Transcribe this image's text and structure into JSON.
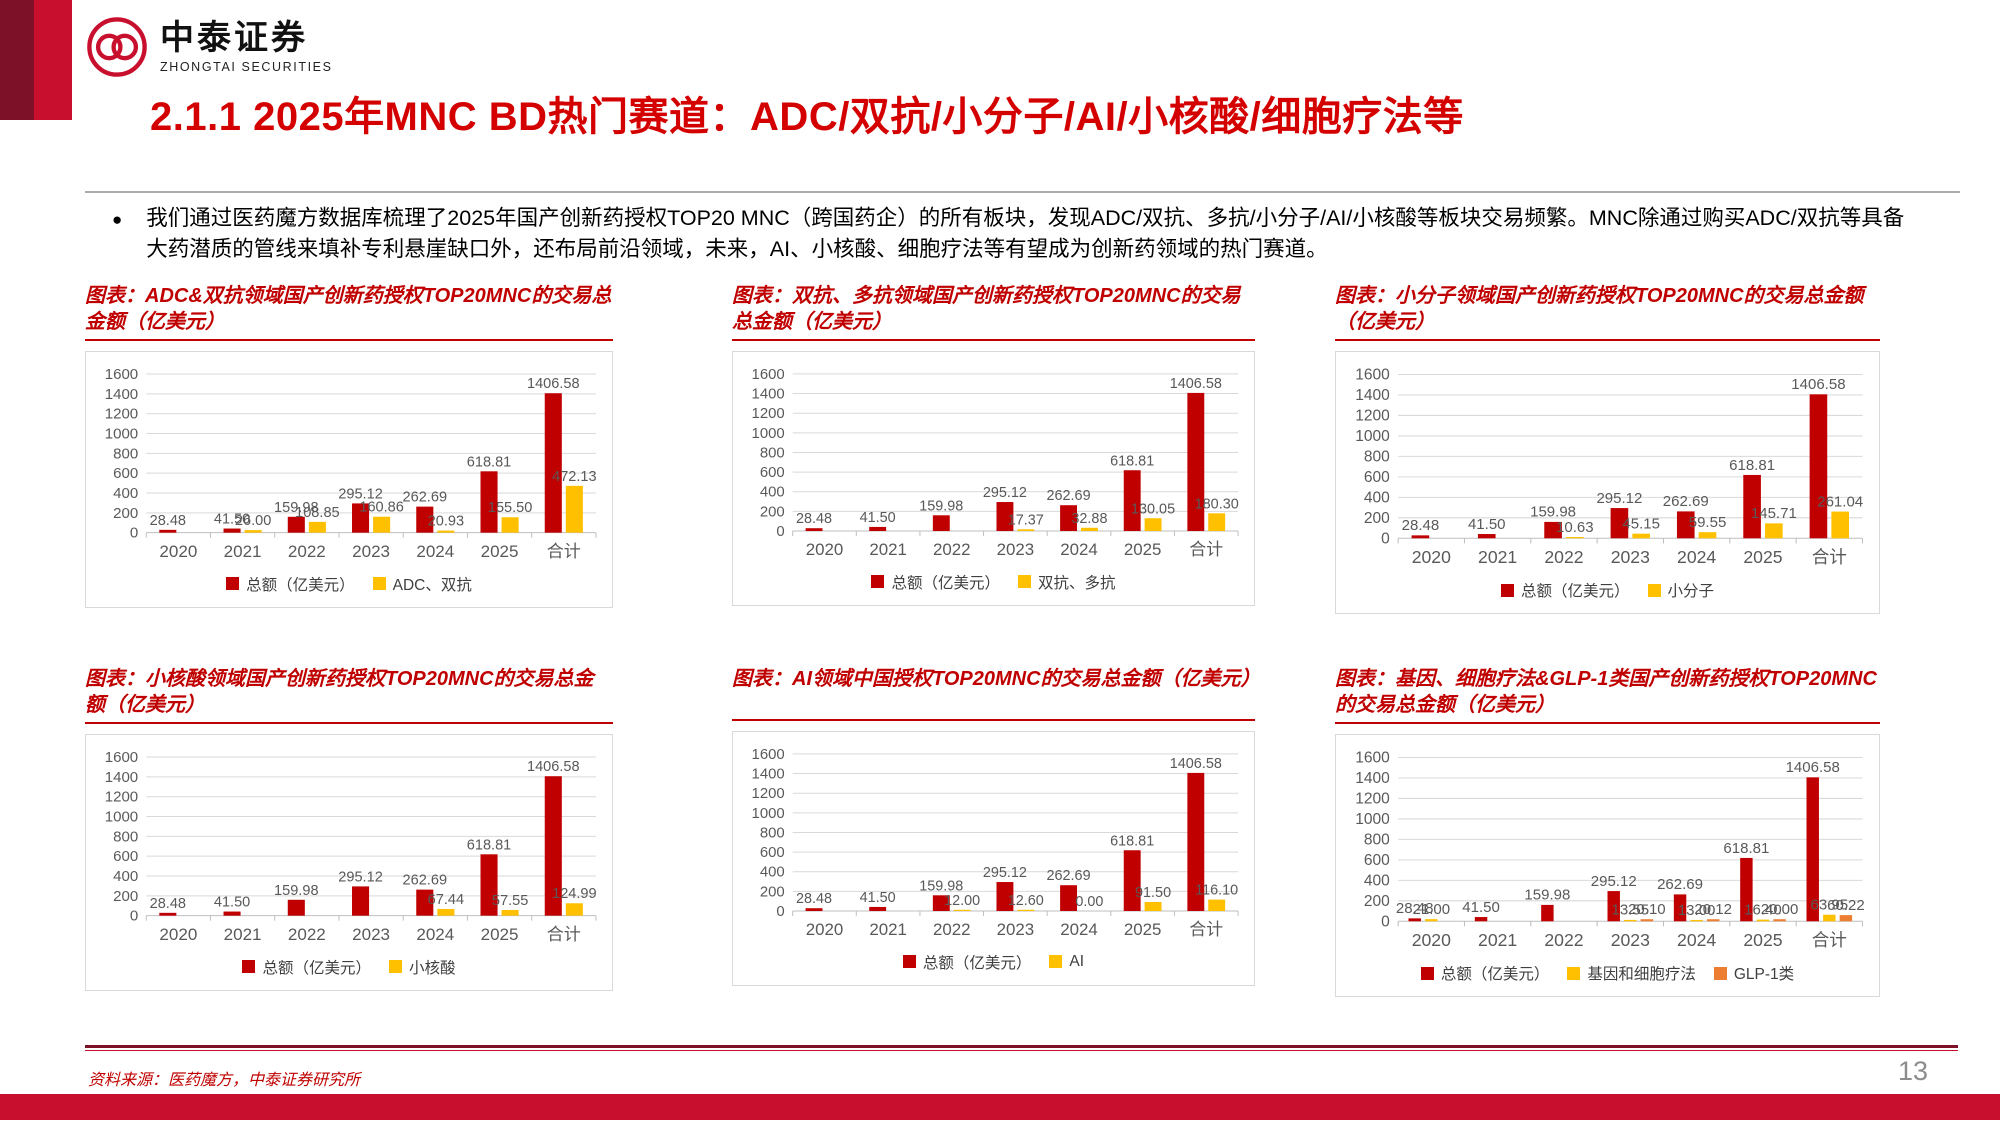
{
  "brand": {
    "name_cn": "中泰证券",
    "name_en": "ZHONGTAI SECURITIES",
    "color": "#C8102E"
  },
  "page": {
    "title": "2.1.1 2025年MNC BD热门赛道：ADC/双抗/小分子/AI/小核酸/细胞疗法等",
    "source": "资料来源：医药魔方，中泰证券研究所",
    "page_number": "13"
  },
  "bullet": {
    "text": "我们通过医药魔方数据库梳理了2025年国产创新药授权TOP20 MNC（跨国药企）的所有板块，发现ADC/双抗、多抗/小分子/AI/小核酸等板块交易频繁。MNC除通过购买ADC/双抗等具备大药潜质的管线来填补专利悬崖缺口外，还布局前沿领域，未来，AI、小核酸、细胞疗法等有望成为创新药领域的热门赛道。"
  },
  "colors": {
    "total_bar": "#C00000",
    "secondary_bar": "#FFC000",
    "tertiary_bar": "#ED7D31",
    "grid": "#D9D9D9",
    "axis_text": "#595959",
    "title_red": "#C00000"
  },
  "chart_data": [
    {
      "type": "bar",
      "title": "图表：ADC&双抗领域国产创新药授权TOP20MNC的交易总金额（亿美元）",
      "categories": [
        "2020",
        "2021",
        "2022",
        "2023",
        "2024",
        "2025",
        "合计"
      ],
      "ylim": [
        0,
        1600
      ],
      "ytick_step": 200,
      "grid": true,
      "legend_position": "bottom",
      "series": [
        {
          "name": "总额（亿美元）",
          "color": "#C00000",
          "values": [
            28.48,
            41.5,
            159.98,
            295.12,
            262.69,
            618.81,
            1406.58
          ]
        },
        {
          "name": "ADC、双抗",
          "color": "#FFC000",
          "values": [
            null,
            26.0,
            108.85,
            160.86,
            20.93,
            155.5,
            472.13
          ]
        }
      ]
    },
    {
      "type": "bar",
      "title": "图表：双抗、多抗领域国产创新药授权TOP20MNC的交易总金额（亿美元）",
      "categories": [
        "2020",
        "2021",
        "2022",
        "2023",
        "2024",
        "2025",
        "合计"
      ],
      "ylim": [
        0,
        1600
      ],
      "ytick_step": 200,
      "grid": true,
      "legend_position": "bottom",
      "series": [
        {
          "name": "总额（亿美元）",
          "color": "#C00000",
          "values": [
            28.48,
            41.5,
            159.98,
            295.12,
            262.69,
            618.81,
            1406.58
          ]
        },
        {
          "name": "双抗、多抗",
          "color": "#FFC000",
          "values": [
            null,
            null,
            null,
            17.37,
            32.88,
            130.05,
            180.3
          ]
        }
      ]
    },
    {
      "type": "bar",
      "title": "图表：小分子领域国产创新药授权TOP20MNC的交易总金额（亿美元）",
      "categories": [
        "2020",
        "2021",
        "2022",
        "2023",
        "2024",
        "2025",
        "合计"
      ],
      "ylim": [
        0,
        1600
      ],
      "ytick_step": 200,
      "grid": true,
      "legend_position": "bottom",
      "series": [
        {
          "name": "总额（亿美元）",
          "color": "#C00000",
          "values": [
            28.48,
            41.5,
            159.98,
            295.12,
            262.69,
            618.81,
            1406.58
          ]
        },
        {
          "name": "小分子",
          "color": "#FFC000",
          "values": [
            null,
            null,
            10.63,
            45.15,
            59.55,
            145.71,
            261.04
          ]
        }
      ]
    },
    {
      "type": "bar",
      "title": "图表：小核酸领域国产创新药授权TOP20MNC的交易总金额（亿美元）",
      "categories": [
        "2020",
        "2021",
        "2022",
        "2023",
        "2024",
        "2025",
        "合计"
      ],
      "ylim": [
        0,
        1600
      ],
      "ytick_step": 200,
      "grid": true,
      "legend_position": "bottom",
      "series": [
        {
          "name": "总额（亿美元）",
          "color": "#C00000",
          "values": [
            28.48,
            41.5,
            159.98,
            295.12,
            262.69,
            618.81,
            1406.58
          ]
        },
        {
          "name": "小核酸",
          "color": "#FFC000",
          "values": [
            null,
            null,
            null,
            null,
            67.44,
            57.55,
            124.99
          ]
        }
      ]
    },
    {
      "type": "bar",
      "title": "图表：AI领域中国授权TOP20MNC的交易总金额（亿美元）",
      "categories": [
        "2020",
        "2021",
        "2022",
        "2023",
        "2024",
        "2025",
        "合计"
      ],
      "ylim": [
        0,
        1600
      ],
      "ytick_step": 200,
      "grid": true,
      "legend_position": "bottom",
      "series": [
        {
          "name": "总额（亿美元）",
          "color": "#C00000",
          "values": [
            28.48,
            41.5,
            159.98,
            295.12,
            262.69,
            618.81,
            1406.58
          ]
        },
        {
          "name": "AI",
          "color": "#FFC000",
          "values": [
            null,
            null,
            12.0,
            12.6,
            0.0,
            91.5,
            116.1
          ]
        }
      ]
    },
    {
      "type": "bar",
      "title": "图表：基因、细胞疗法&GLP-1类国产创新药授权TOP20MNC的交易总金额（亿美元）",
      "categories": [
        "2020",
        "2021",
        "2022",
        "2023",
        "2024",
        "2025",
        "合计"
      ],
      "ylim": [
        0,
        1600
      ],
      "ytick_step": 200,
      "grid": true,
      "legend_position": "bottom",
      "series": [
        {
          "name": "总额（亿美元）",
          "color": "#C00000",
          "values": [
            28.48,
            41.5,
            159.98,
            295.12,
            262.69,
            618.81,
            1406.58
          ]
        },
        {
          "name": "基因和细胞疗法",
          "color": "#FFC000",
          "values": [
            21.0,
            null,
            null,
            13.55,
            13.0,
            16.4,
            63.95
          ]
        },
        {
          "name": "GLP-1类",
          "color": "#ED7D31",
          "values": [
            null,
            null,
            null,
            20.1,
            20.12,
            20.0,
            60.22
          ]
        }
      ]
    }
  ]
}
